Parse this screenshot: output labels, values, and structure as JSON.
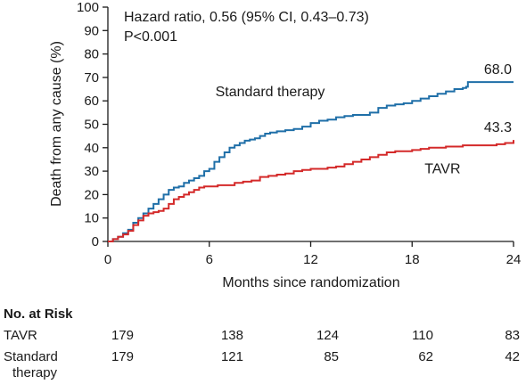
{
  "chart_data": {
    "type": "line",
    "title": "",
    "xlabel": "Months since randomization",
    "ylabel": "Death from any cause (%)",
    "xlim": [
      0,
      24
    ],
    "ylim": [
      0,
      100
    ],
    "xticks": [
      0,
      6,
      12,
      18,
      24
    ],
    "yticks": [
      0,
      10,
      20,
      30,
      40,
      50,
      60,
      70,
      80,
      90,
      100
    ],
    "grid": false,
    "annotation_lines": [
      "Hazard ratio, 0.56 (95% CI, 0.43–0.73)",
      "P<0.001"
    ],
    "series": [
      {
        "name": "Standard therapy",
        "color": "#1f6fa8",
        "end_label": "68.0",
        "points": [
          [
            0,
            0
          ],
          [
            0.3,
            1
          ],
          [
            0.6,
            2
          ],
          [
            0.9,
            3.5
          ],
          [
            1.2,
            5
          ],
          [
            1.5,
            8
          ],
          [
            1.8,
            10
          ],
          [
            2.1,
            12
          ],
          [
            2.4,
            14
          ],
          [
            2.7,
            16
          ],
          [
            3.0,
            18
          ],
          [
            3.3,
            20
          ],
          [
            3.6,
            22
          ],
          [
            3.9,
            23
          ],
          [
            4.2,
            23.5
          ],
          [
            4.5,
            25
          ],
          [
            4.8,
            26
          ],
          [
            5.1,
            27
          ],
          [
            5.4,
            28
          ],
          [
            5.7,
            30
          ],
          [
            6.0,
            31
          ],
          [
            6.3,
            34
          ],
          [
            6.6,
            36
          ],
          [
            6.9,
            38
          ],
          [
            7.2,
            40
          ],
          [
            7.5,
            41
          ],
          [
            7.8,
            42
          ],
          [
            8.1,
            43
          ],
          [
            8.4,
            43.5
          ],
          [
            8.7,
            44
          ],
          [
            9.0,
            45
          ],
          [
            9.3,
            46
          ],
          [
            9.6,
            46.5
          ],
          [
            10.0,
            47
          ],
          [
            10.5,
            47.5
          ],
          [
            11.0,
            48
          ],
          [
            11.5,
            49
          ],
          [
            12.0,
            50.5
          ],
          [
            12.5,
            51.5
          ],
          [
            13.0,
            52
          ],
          [
            13.5,
            53
          ],
          [
            14.0,
            53.5
          ],
          [
            14.5,
            54
          ],
          [
            15.0,
            54
          ],
          [
            15.5,
            55
          ],
          [
            16.0,
            57
          ],
          [
            16.5,
            58
          ],
          [
            17.0,
            58.5
          ],
          [
            17.5,
            59
          ],
          [
            18.0,
            60
          ],
          [
            18.5,
            61
          ],
          [
            19.0,
            62
          ],
          [
            19.5,
            63
          ],
          [
            20.0,
            64
          ],
          [
            20.5,
            65
          ],
          [
            21.0,
            65.5
          ],
          [
            21.2,
            66
          ],
          [
            21.3,
            68
          ],
          [
            22.0,
            68
          ],
          [
            23.0,
            68
          ],
          [
            24.0,
            68
          ]
        ]
      },
      {
        "name": "TAVR",
        "color": "#d42a2a",
        "end_label": "43.3",
        "points": [
          [
            0,
            0
          ],
          [
            0.3,
            1
          ],
          [
            0.6,
            2
          ],
          [
            0.9,
            3
          ],
          [
            1.2,
            4.5
          ],
          [
            1.5,
            7
          ],
          [
            1.8,
            9
          ],
          [
            2.1,
            11
          ],
          [
            2.4,
            12
          ],
          [
            2.7,
            12.5
          ],
          [
            3.0,
            13
          ],
          [
            3.3,
            14
          ],
          [
            3.6,
            16
          ],
          [
            3.9,
            18
          ],
          [
            4.2,
            19
          ],
          [
            4.5,
            20
          ],
          [
            4.8,
            21
          ],
          [
            5.1,
            22
          ],
          [
            5.4,
            23
          ],
          [
            5.7,
            23.5
          ],
          [
            6.0,
            23.5
          ],
          [
            6.5,
            24
          ],
          [
            7.0,
            24
          ],
          [
            7.5,
            25
          ],
          [
            8.0,
            25.5
          ],
          [
            8.5,
            26
          ],
          [
            9.0,
            27.5
          ],
          [
            9.5,
            28
          ],
          [
            10.0,
            28.5
          ],
          [
            10.5,
            29
          ],
          [
            11.0,
            30
          ],
          [
            11.5,
            30.5
          ],
          [
            12.0,
            31
          ],
          [
            12.5,
            31
          ],
          [
            13.0,
            31.5
          ],
          [
            13.5,
            32
          ],
          [
            14.0,
            33
          ],
          [
            14.5,
            34
          ],
          [
            15.0,
            35
          ],
          [
            15.5,
            36
          ],
          [
            16.0,
            37
          ],
          [
            16.5,
            38
          ],
          [
            17.0,
            38.5
          ],
          [
            17.5,
            38.5
          ],
          [
            18.0,
            39
          ],
          [
            18.5,
            39.5
          ],
          [
            19.0,
            40
          ],
          [
            19.5,
            40
          ],
          [
            20.0,
            40.5
          ],
          [
            21.0,
            41
          ],
          [
            22.0,
            41
          ],
          [
            23.0,
            41.5
          ],
          [
            23.5,
            42
          ],
          [
            24.0,
            43.3
          ]
        ]
      }
    ]
  },
  "risk_table": {
    "title": "No. at Risk",
    "rows": [
      {
        "label_lines": [
          "TAVR"
        ],
        "values": [
          "179",
          "138",
          "124",
          "110",
          "83"
        ]
      },
      {
        "label_lines": [
          "Standard",
          "therapy"
        ],
        "values": [
          "179",
          "121",
          "85",
          "62",
          "42"
        ]
      }
    ]
  }
}
